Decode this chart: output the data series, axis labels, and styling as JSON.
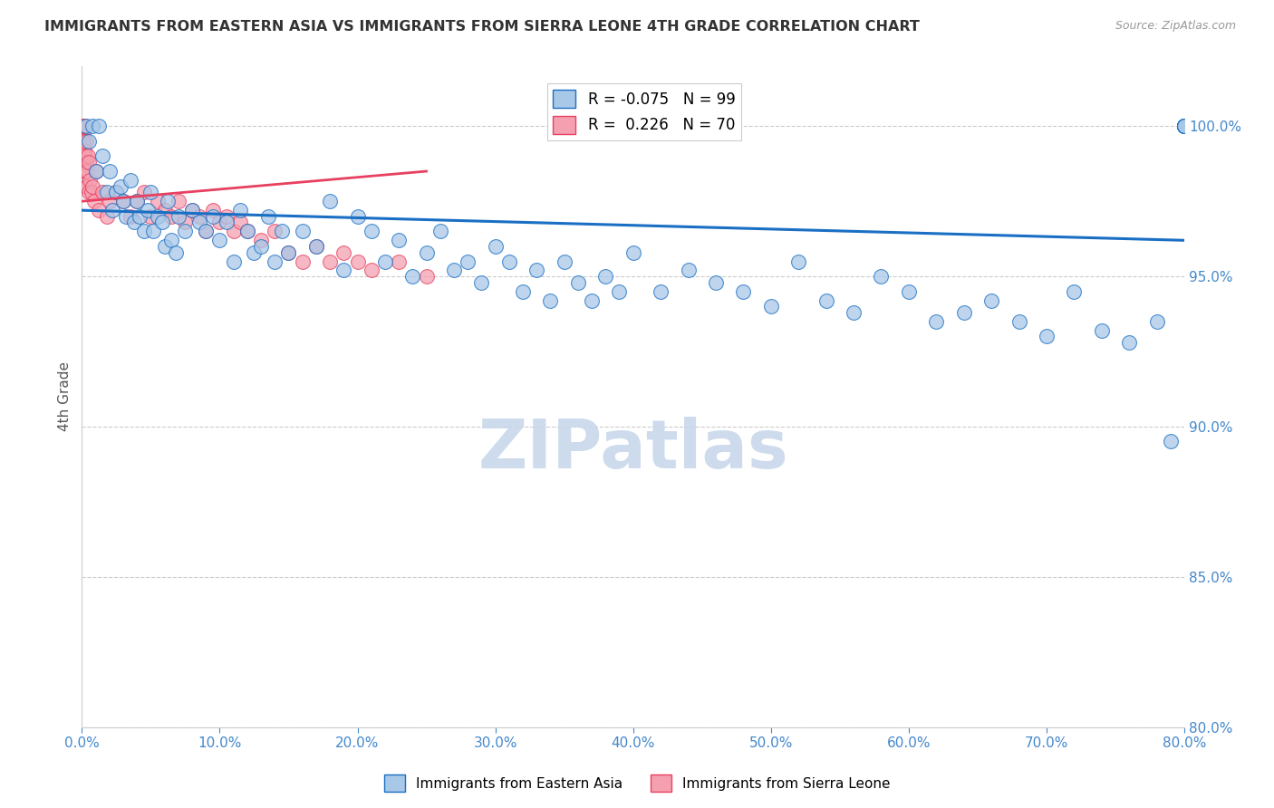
{
  "title": "IMMIGRANTS FROM EASTERN ASIA VS IMMIGRANTS FROM SIERRA LEONE 4TH GRADE CORRELATION CHART",
  "source": "Source: ZipAtlas.com",
  "ylabel": "4th Grade",
  "r_blue": -0.075,
  "n_blue": 99,
  "r_pink": 0.226,
  "n_pink": 70,
  "x_min": 0.0,
  "x_max": 80.0,
  "y_min": 80.0,
  "y_max": 102.0,
  "y_ticks": [
    80.0,
    85.0,
    90.0,
    95.0,
    100.0
  ],
  "x_ticks": [
    0.0,
    10.0,
    20.0,
    30.0,
    40.0,
    50.0,
    60.0,
    70.0,
    80.0
  ],
  "blue_color": "#a8c8e8",
  "pink_color": "#f4a0b0",
  "blue_line_color": "#1a6fc4",
  "pink_line_color": "#e84060",
  "grid_color": "#cccccc",
  "axis_color": "#4488cc",
  "watermark_color": "#c8d8ec",
  "blue_scatter_x": [
    0.3,
    0.5,
    0.8,
    1.0,
    1.2,
    1.5,
    1.8,
    2.0,
    2.2,
    2.5,
    2.8,
    3.0,
    3.2,
    3.5,
    3.8,
    4.0,
    4.2,
    4.5,
    4.8,
    5.0,
    5.2,
    5.5,
    5.8,
    6.0,
    6.2,
    6.5,
    6.8,
    7.0,
    7.5,
    8.0,
    8.5,
    9.0,
    9.5,
    10.0,
    10.5,
    11.0,
    11.5,
    12.0,
    12.5,
    13.0,
    13.5,
    14.0,
    14.5,
    15.0,
    16.0,
    17.0,
    18.0,
    19.0,
    20.0,
    21.0,
    22.0,
    23.0,
    24.0,
    25.0,
    26.0,
    27.0,
    28.0,
    29.0,
    30.0,
    31.0,
    32.0,
    33.0,
    34.0,
    35.0,
    36.0,
    37.0,
    38.0,
    39.0,
    40.0,
    42.0,
    44.0,
    46.0,
    48.0,
    50.0,
    52.0,
    54.0,
    56.0,
    58.0,
    60.0,
    62.0,
    64.0,
    66.0,
    68.0,
    70.0,
    72.0,
    74.0,
    76.0,
    78.0,
    79.0,
    80.0,
    80.0,
    80.0,
    80.0,
    80.0,
    80.0,
    80.0,
    80.0,
    80.0,
    80.0
  ],
  "blue_scatter_y": [
    100.0,
    99.5,
    100.0,
    98.5,
    100.0,
    99.0,
    97.8,
    98.5,
    97.2,
    97.8,
    98.0,
    97.5,
    97.0,
    98.2,
    96.8,
    97.5,
    97.0,
    96.5,
    97.2,
    97.8,
    96.5,
    97.0,
    96.8,
    96.0,
    97.5,
    96.2,
    95.8,
    97.0,
    96.5,
    97.2,
    96.8,
    96.5,
    97.0,
    96.2,
    96.8,
    95.5,
    97.2,
    96.5,
    95.8,
    96.0,
    97.0,
    95.5,
    96.5,
    95.8,
    96.5,
    96.0,
    97.5,
    95.2,
    97.0,
    96.5,
    95.5,
    96.2,
    95.0,
    95.8,
    96.5,
    95.2,
    95.5,
    94.8,
    96.0,
    95.5,
    94.5,
    95.2,
    94.2,
    95.5,
    94.8,
    94.2,
    95.0,
    94.5,
    95.8,
    94.5,
    95.2,
    94.8,
    94.5,
    94.0,
    95.5,
    94.2,
    93.8,
    95.0,
    94.5,
    93.5,
    93.8,
    94.2,
    93.5,
    93.0,
    94.5,
    93.2,
    92.8,
    93.5,
    89.5,
    100.0,
    100.0,
    100.0,
    100.0,
    100.0,
    100.0,
    100.0,
    100.0,
    100.0,
    100.0
  ],
  "pink_scatter_x": [
    0.02,
    0.03,
    0.04,
    0.05,
    0.05,
    0.06,
    0.07,
    0.08,
    0.08,
    0.09,
    0.1,
    0.1,
    0.12,
    0.12,
    0.13,
    0.15,
    0.15,
    0.18,
    0.2,
    0.2,
    0.22,
    0.25,
    0.28,
    0.3,
    0.3,
    0.35,
    0.4,
    0.45,
    0.5,
    0.5,
    0.6,
    0.7,
    0.8,
    0.9,
    1.0,
    1.2,
    1.5,
    1.8,
    2.0,
    2.5,
    3.0,
    3.5,
    4.0,
    4.5,
    5.0,
    5.5,
    6.0,
    6.5,
    7.0,
    7.5,
    8.0,
    8.5,
    9.0,
    9.5,
    10.0,
    10.5,
    11.0,
    11.5,
    12.0,
    13.0,
    14.0,
    15.0,
    16.0,
    17.0,
    18.0,
    19.0,
    20.0,
    21.0,
    23.0,
    25.0
  ],
  "pink_scatter_y": [
    100.0,
    99.8,
    100.0,
    99.5,
    100.0,
    99.8,
    100.0,
    99.5,
    99.8,
    100.0,
    99.2,
    99.5,
    100.0,
    98.8,
    99.5,
    100.0,
    98.5,
    99.2,
    100.0,
    98.8,
    99.0,
    98.5,
    99.5,
    98.0,
    98.8,
    98.5,
    98.0,
    99.0,
    97.8,
    98.8,
    98.2,
    97.8,
    98.0,
    97.5,
    98.5,
    97.2,
    97.8,
    97.0,
    97.5,
    97.8,
    97.5,
    97.0,
    97.5,
    97.8,
    97.0,
    97.5,
    97.2,
    97.0,
    97.5,
    96.8,
    97.2,
    97.0,
    96.5,
    97.2,
    96.8,
    97.0,
    96.5,
    96.8,
    96.5,
    96.2,
    96.5,
    95.8,
    95.5,
    96.0,
    95.5,
    95.8,
    95.5,
    95.2,
    95.5,
    95.0
  ],
  "blue_trendline_x": [
    0.0,
    80.0
  ],
  "blue_trendline_y": [
    97.2,
    96.2
  ],
  "pink_trendline_x": [
    0.0,
    25.0
  ],
  "pink_trendline_y": [
    97.5,
    98.5
  ]
}
